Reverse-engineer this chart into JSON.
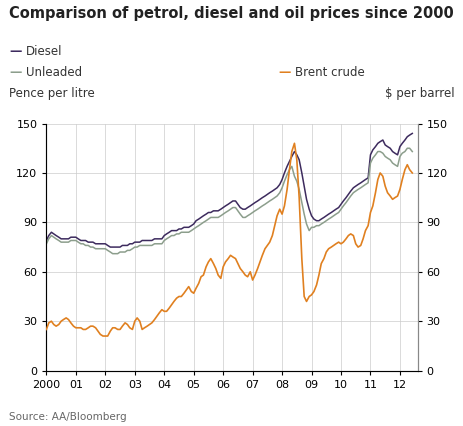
{
  "title": "Comparison of petrol, diesel and oil prices since 2000",
  "ylabel_left": "Pence per litre",
  "ylabel_right": "$ per barrel",
  "source": "Source: AA/Bloomberg",
  "ylim": [
    0,
    150
  ],
  "yticks": [
    0,
    30,
    60,
    90,
    120,
    150
  ],
  "xtick_labels": [
    "2000",
    "01",
    "02",
    "03",
    "04",
    "05",
    "06",
    "07",
    "08",
    "09",
    "10",
    "11",
    "12"
  ],
  "legend": [
    {
      "label": "Diesel",
      "color": "#3d2b5e"
    },
    {
      "label": "Unleaded",
      "color": "#8c9e8c"
    },
    {
      "label": "Brent crude",
      "color": "#e08020"
    }
  ],
  "background_color": "#ffffff",
  "grid_color": "#cccccc",
  "diesel_x": [
    2000.0,
    2000.08,
    2000.17,
    2000.25,
    2000.33,
    2000.42,
    2000.5,
    2000.58,
    2000.67,
    2000.75,
    2000.83,
    2000.92,
    2001.0,
    2001.08,
    2001.17,
    2001.25,
    2001.33,
    2001.42,
    2001.5,
    2001.58,
    2001.67,
    2001.75,
    2001.83,
    2001.92,
    2002.0,
    2002.08,
    2002.17,
    2002.25,
    2002.33,
    2002.42,
    2002.5,
    2002.58,
    2002.67,
    2002.75,
    2002.83,
    2002.92,
    2003.0,
    2003.08,
    2003.17,
    2003.25,
    2003.33,
    2003.42,
    2003.5,
    2003.58,
    2003.67,
    2003.75,
    2003.83,
    2003.92,
    2004.0,
    2004.08,
    2004.17,
    2004.25,
    2004.33,
    2004.42,
    2004.5,
    2004.58,
    2004.67,
    2004.75,
    2004.83,
    2004.92,
    2005.0,
    2005.08,
    2005.17,
    2005.25,
    2005.33,
    2005.42,
    2005.5,
    2005.58,
    2005.67,
    2005.75,
    2005.83,
    2005.92,
    2006.0,
    2006.08,
    2006.17,
    2006.25,
    2006.33,
    2006.42,
    2006.5,
    2006.58,
    2006.67,
    2006.75,
    2006.83,
    2006.92,
    2007.0,
    2007.08,
    2007.17,
    2007.25,
    2007.33,
    2007.42,
    2007.5,
    2007.58,
    2007.67,
    2007.75,
    2007.83,
    2007.92,
    2008.0,
    2008.08,
    2008.17,
    2008.25,
    2008.33,
    2008.42,
    2008.5,
    2008.58,
    2008.67,
    2008.75,
    2008.83,
    2008.92,
    2009.0,
    2009.08,
    2009.17,
    2009.25,
    2009.33,
    2009.42,
    2009.5,
    2009.58,
    2009.67,
    2009.75,
    2009.83,
    2009.92,
    2010.0,
    2010.08,
    2010.17,
    2010.25,
    2010.33,
    2010.42,
    2010.5,
    2010.58,
    2010.67,
    2010.75,
    2010.83,
    2010.92,
    2011.0,
    2011.08,
    2011.17,
    2011.25,
    2011.33,
    2011.42,
    2011.5,
    2011.58,
    2011.67,
    2011.75,
    2011.83,
    2011.92,
    2012.0,
    2012.08,
    2012.17,
    2012.25,
    2012.33,
    2012.42
  ],
  "diesel_y": [
    79,
    82,
    84,
    83,
    82,
    81,
    80,
    80,
    80,
    80,
    81,
    81,
    81,
    80,
    79,
    79,
    79,
    78,
    78,
    78,
    77,
    77,
    77,
    77,
    77,
    76,
    75,
    75,
    75,
    75,
    75,
    76,
    76,
    76,
    77,
    77,
    78,
    78,
    78,
    79,
    79,
    79,
    79,
    79,
    80,
    80,
    80,
    80,
    82,
    83,
    84,
    85,
    85,
    85,
    86,
    86,
    87,
    87,
    87,
    88,
    89,
    91,
    92,
    93,
    94,
    95,
    96,
    96,
    97,
    97,
    97,
    98,
    99,
    100,
    101,
    102,
    103,
    103,
    101,
    99,
    98,
    98,
    99,
    100,
    101,
    102,
    103,
    104,
    105,
    106,
    107,
    108,
    109,
    110,
    111,
    113,
    116,
    120,
    124,
    127,
    130,
    133,
    131,
    128,
    120,
    112,
    104,
    98,
    94,
    92,
    91,
    91,
    92,
    93,
    94,
    95,
    96,
    97,
    98,
    99,
    101,
    103,
    105,
    107,
    109,
    111,
    112,
    113,
    114,
    115,
    116,
    117,
    131,
    134,
    136,
    138,
    139,
    140,
    137,
    136,
    135,
    133,
    132,
    131,
    136,
    138,
    140,
    142,
    143,
    144
  ],
  "unleaded_y": [
    77,
    80,
    82,
    81,
    80,
    79,
    78,
    78,
    78,
    78,
    79,
    79,
    79,
    78,
    77,
    77,
    76,
    76,
    75,
    75,
    74,
    74,
    74,
    74,
    74,
    73,
    72,
    71,
    71,
    71,
    72,
    72,
    72,
    73,
    73,
    74,
    75,
    75,
    76,
    76,
    76,
    76,
    76,
    76,
    77,
    77,
    77,
    77,
    79,
    80,
    81,
    82,
    82,
    83,
    83,
    84,
    84,
    84,
    84,
    85,
    86,
    87,
    88,
    89,
    90,
    91,
    92,
    93,
    93,
    93,
    93,
    94,
    95,
    96,
    97,
    98,
    99,
    99,
    97,
    95,
    93,
    93,
    94,
    95,
    96,
    97,
    98,
    99,
    100,
    101,
    102,
    103,
    104,
    105,
    106,
    108,
    111,
    115,
    119,
    122,
    124,
    118,
    115,
    110,
    102,
    95,
    89,
    85,
    87,
    87,
    88,
    88,
    89,
    90,
    91,
    92,
    93,
    94,
    95,
    96,
    98,
    100,
    102,
    104,
    106,
    108,
    109,
    110,
    111,
    112,
    113,
    114,
    126,
    129,
    131,
    133,
    133,
    132,
    130,
    129,
    128,
    126,
    125,
    124,
    130,
    132,
    133,
    135,
    135,
    133
  ],
  "brent_y": [
    25,
    29,
    30,
    28,
    27,
    28,
    30,
    31,
    32,
    31,
    29,
    27,
    26,
    26,
    26,
    25,
    25,
    26,
    27,
    27,
    26,
    24,
    22,
    21,
    21,
    21,
    24,
    26,
    26,
    25,
    25,
    27,
    29,
    28,
    26,
    25,
    30,
    32,
    30,
    25,
    26,
    27,
    28,
    29,
    31,
    33,
    35,
    37,
    36,
    36,
    38,
    40,
    42,
    44,
    45,
    45,
    47,
    49,
    51,
    48,
    47,
    50,
    53,
    57,
    58,
    63,
    66,
    68,
    65,
    62,
    58,
    56,
    63,
    66,
    68,
    70,
    69,
    68,
    65,
    62,
    60,
    58,
    57,
    60,
    55,
    58,
    62,
    66,
    70,
    74,
    76,
    78,
    82,
    88,
    94,
    98,
    95,
    100,
    110,
    122,
    133,
    138,
    128,
    105,
    68,
    45,
    42,
    45,
    46,
    48,
    52,
    58,
    65,
    68,
    72,
    74,
    75,
    76,
    77,
    78,
    77,
    78,
    80,
    82,
    83,
    82,
    77,
    75,
    76,
    80,
    85,
    88,
    96,
    100,
    108,
    116,
    120,
    118,
    112,
    108,
    106,
    104,
    105,
    106,
    110,
    116,
    122,
    125,
    122,
    120
  ],
  "title_fontsize": 10.5,
  "label_fontsize": 8.5,
  "tick_fontsize": 8
}
